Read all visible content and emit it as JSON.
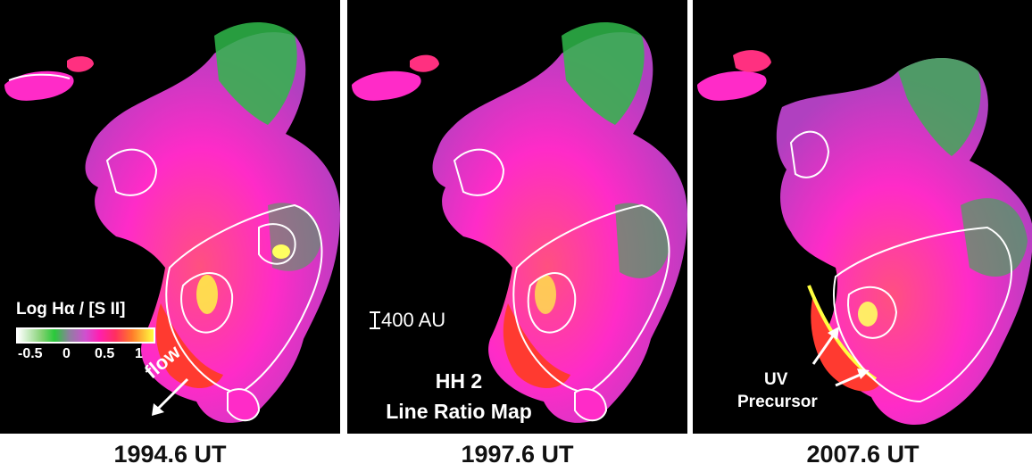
{
  "panels": [
    {
      "caption": "1994.6 UT"
    },
    {
      "caption": "1997.6 UT"
    },
    {
      "caption": "2007.6 UT"
    }
  ],
  "colorbar": {
    "label": "Log Hα / [S II]",
    "ticks": [
      "-0.5",
      "0",
      "0.5",
      "1"
    ]
  },
  "annotations": {
    "flow": "flow",
    "scale": "400 AU",
    "title_line1": "HH 2",
    "title_line2": "Line Ratio Map",
    "uv_line1": "UV",
    "uv_line2": "Precursor"
  },
  "colors": {
    "background": "#000000",
    "magenta": "#ff2bc8",
    "green": "#2fb84a",
    "red": "#ff2a3a",
    "yellow": "#ffff40",
    "contour": "#ffffff"
  }
}
